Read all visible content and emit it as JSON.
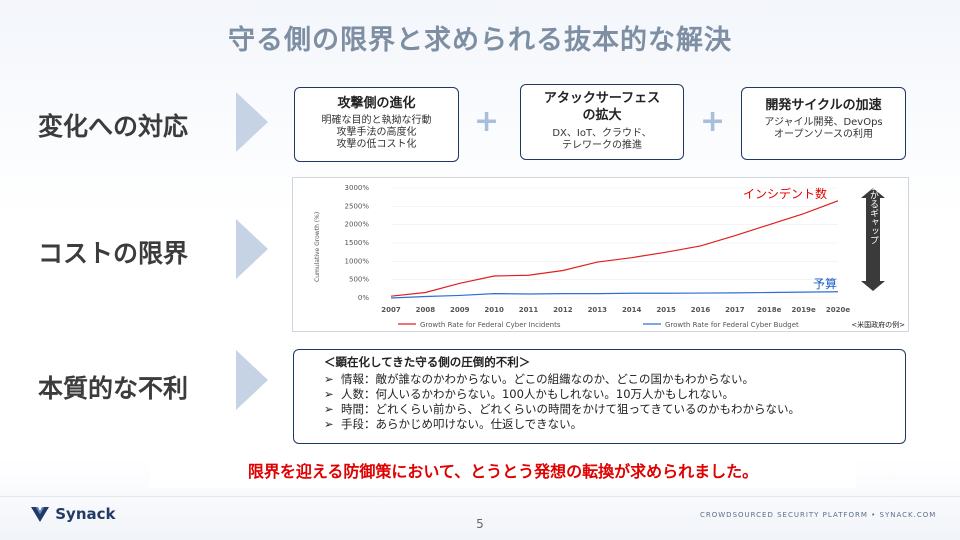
{
  "title": "守る側の限界と求められる抜本的な解決",
  "sections": {
    "change": "変化への対応",
    "cost": "コストの限界",
    "essential": "本質的な不利"
  },
  "change_boxes": [
    {
      "heading": "攻撃側の進化",
      "lines": [
        "明確な目的と執拗な行動",
        "攻撃手法の高度化",
        "攻撃の低コスト化"
      ]
    },
    {
      "heading": "アタックサーフェス\nの拡大",
      "lines": [
        "DX、IoT、クラウド、",
        "テレワークの推進"
      ]
    },
    {
      "heading": "開発サイクルの加速",
      "lines": [
        "アジャイル開発、DevOps",
        "オープンソースの利用"
      ]
    }
  ],
  "plus_icon": "plus-icon",
  "chart_data": {
    "type": "line",
    "x": [
      "2007",
      "2008",
      "2009",
      "2010",
      "2011",
      "2012",
      "2013",
      "2014",
      "2015",
      "2016",
      "2017",
      "2018e",
      "2019e",
      "2020e"
    ],
    "ylabel": "Cumulative Growth (%)",
    "yticks": [
      "0%",
      "500%",
      "1000%",
      "1500%",
      "2000%",
      "2500%",
      "3000%"
    ],
    "ylim": [
      0,
      3000
    ],
    "series": [
      {
        "name": "Growth Rate for Federal Cyber Incidents",
        "color": "#e02020",
        "values": [
          50,
          150,
          400,
          600,
          620,
          750,
          980,
          1100,
          1250,
          1420,
          1700,
          2000,
          2300,
          2650
        ]
      },
      {
        "name": "Growth Rate for Federal Cyber Budget",
        "color": "#2f6fd6",
        "values": [
          0,
          40,
          70,
          120,
          110,
          120,
          120,
          130,
          130,
          135,
          140,
          150,
          160,
          170
        ]
      }
    ],
    "annotations": {
      "incidents": "インシデント数",
      "budget": "予算",
      "gap": "広がるギャップ",
      "source": "<米国政府の例>"
    }
  },
  "disadvantage": {
    "heading": "＜顕在化してきた守る側の圧倒的不利＞",
    "bullet": "➢",
    "items": [
      "情報：敵が誰なのかわからない。どこの組織なのか、どこの国かもわからない。",
      "人数：何人いるかわからない。100人かもしれない。10万人かもしれない。",
      "時間：どれくらい前から、どれくらいの時間をかけて狙ってきているのかもわからない。",
      "手段：あらかじめ叩けない。仕返しできない。"
    ]
  },
  "banner": "限界を迎える防御策において、とうとう発想の転換が求められました。",
  "footer": {
    "logo": "Synack",
    "page": "5",
    "tagline": "CROWDSOURCED SECURITY PLATFORM • SYNACK.COM"
  }
}
